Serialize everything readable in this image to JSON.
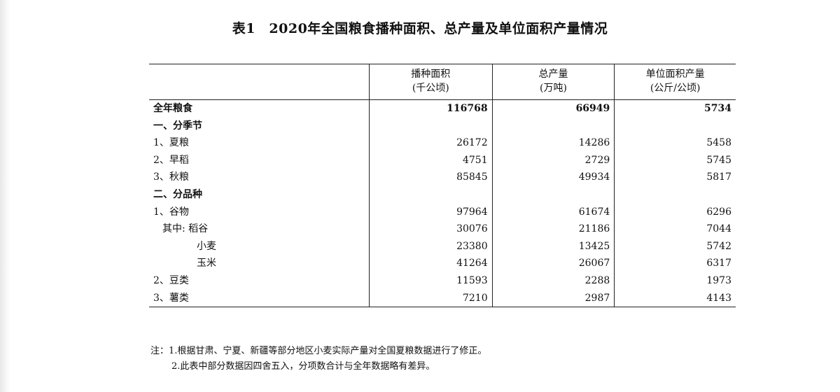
{
  "title": "表1　2020年全国粮食播种面积、总产量及单位面积产量情况",
  "columns": [
    {
      "name": "播种面积",
      "unit": "(千公顷)"
    },
    {
      "name": "总产量",
      "unit": "(万吨)"
    },
    {
      "name": "单位面积产量",
      "unit": "(公斤/公顷)"
    }
  ],
  "total": {
    "label": "全年粮食",
    "values": [
      "116768",
      "66949",
      "5734"
    ]
  },
  "season": {
    "heading": "一、分季节",
    "rows": [
      {
        "label": "1、夏粮",
        "values": [
          "26172",
          "14286",
          "5458"
        ]
      },
      {
        "label": "2、早稻",
        "values": [
          "4751",
          "2729",
          "5745"
        ]
      },
      {
        "label": "3、秋粮",
        "values": [
          "85845",
          "49934",
          "5817"
        ]
      }
    ]
  },
  "variety": {
    "heading": "二、分品种",
    "rows": [
      {
        "label": "1、谷物",
        "values": [
          "97964",
          "61674",
          "6296"
        ]
      },
      {
        "label": "其中: 稻谷",
        "values": [
          "30076",
          "21186",
          "7044"
        ]
      },
      {
        "label": "小麦",
        "values": [
          "23380",
          "13425",
          "5742"
        ]
      },
      {
        "label": "玉米",
        "values": [
          "41264",
          "26067",
          "6317"
        ]
      },
      {
        "label": "2、豆类",
        "values": [
          "11593",
          "2288",
          "1973"
        ]
      },
      {
        "label": "3、薯类",
        "values": [
          "7210",
          "2987",
          "4143"
        ]
      }
    ]
  },
  "notes": [
    "注：1.根据甘肃、宁夏、新疆等部分地区小麦实际产量对全国夏粮数据进行了修正。",
    "2.此表中部分数据因四舍五入，分项数合计与全年数据略有差异。"
  ]
}
